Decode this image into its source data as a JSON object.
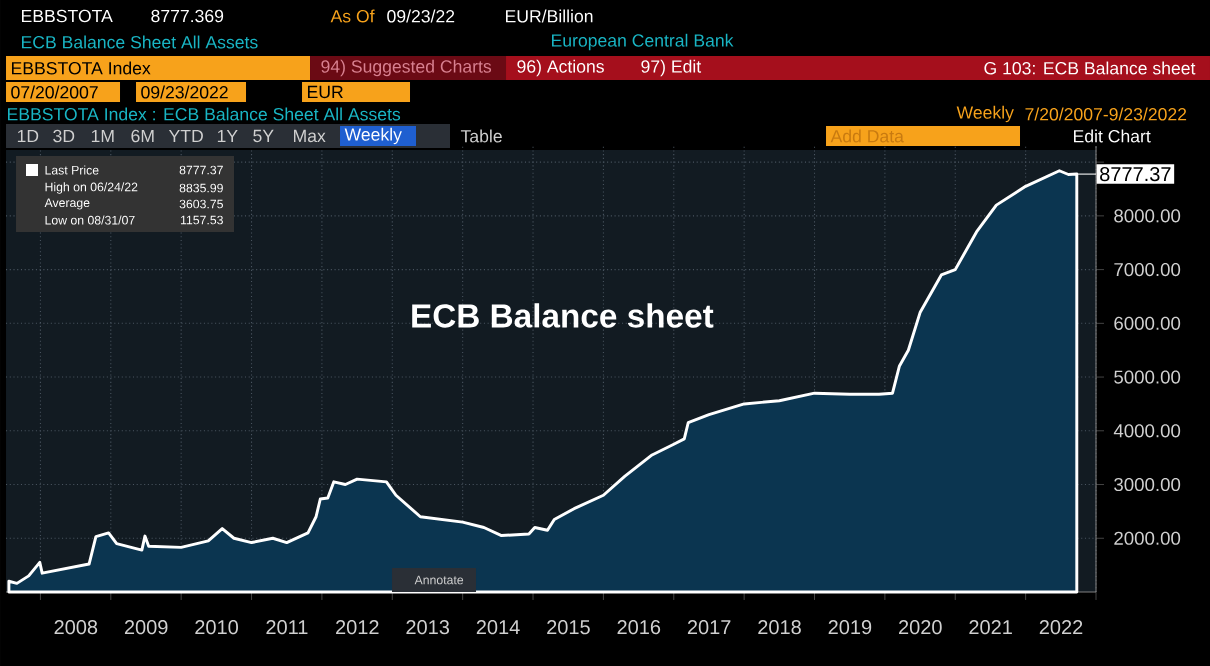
{
  "chart_data": {
    "type": "area",
    "title": "ECB Balance sheet",
    "x": [
      "2007-07-20",
      "2007-08-31",
      "2007-11-01",
      "2007-12-28",
      "2008-01-10",
      "2008-09-10",
      "2008-10-15",
      "2008-12-20",
      "2009-02-01",
      "2009-06-10",
      "2009-06-26",
      "2009-07-15",
      "2010-01-01",
      "2010-05-20",
      "2010-08-01",
      "2010-10-01",
      "2011-01-01",
      "2011-04-20",
      "2011-07-01",
      "2011-10-20",
      "2011-12-01",
      "2011-12-23",
      "2012-02-01",
      "2012-03-02",
      "2012-05-01",
      "2012-07-01",
      "2012-12-01",
      "2013-01-20",
      "2013-05-25",
      "2014-01-01",
      "2014-04-20",
      "2014-07-20",
      "2014-12-10",
      "2015-01-10",
      "2015-03-15",
      "2015-04-20",
      "2015-08-01",
      "2016-01-01",
      "2016-04-20",
      "2016-09-10",
      "2017-01-01",
      "2017-02-25",
      "2017-03-15",
      "2017-07-01",
      "2018-01-01",
      "2018-07-01",
      "2019-01-01",
      "2019-07-01",
      "2019-12-01",
      "2020-02-10",
      "2020-03-15",
      "2020-05-01",
      "2020-07-01",
      "2020-10-20",
      "2021-01-01",
      "2021-04-20",
      "2021-08-01",
      "2022-01-01",
      "2022-06-24",
      "2022-08-10",
      "2022-09-23"
    ],
    "series": [
      {
        "name": "Last Price",
        "color": "#ffffff",
        "values": [
          1200,
          1160,
          1300,
          1550,
          1350,
          1520,
          2030,
          2100,
          1900,
          1780,
          2040,
          1850,
          1830,
          1950,
          2180,
          2000,
          1920,
          2000,
          1920,
          2100,
          2400,
          2730,
          2750,
          3050,
          3000,
          3100,
          3050,
          2800,
          2400,
          2300,
          2200,
          2050,
          2080,
          2200,
          2150,
          2350,
          2550,
          2800,
          3150,
          3550,
          3750,
          3850,
          4150,
          4300,
          4500,
          4560,
          4700,
          4680,
          4680,
          4700,
          5200,
          5500,
          6200,
          6900,
          7000,
          7700,
          8200,
          8550,
          8840,
          8770,
          8780
        ]
      }
    ],
    "xlim": [
      "2007-07-05",
      "2023-01-01"
    ],
    "xticks": [
      {
        "value": "2008-01-01",
        "label": null
      },
      {
        "value": "2008-07-02",
        "label": "2008"
      },
      {
        "value": "2009-01-01",
        "label": null
      },
      {
        "value": "2009-07-02",
        "label": "2009"
      },
      {
        "value": "2010-01-01",
        "label": null
      },
      {
        "value": "2010-07-02",
        "label": "2010"
      },
      {
        "value": "2011-01-01",
        "label": null
      },
      {
        "value": "2011-07-02",
        "label": "2011"
      },
      {
        "value": "2012-01-01",
        "label": null
      },
      {
        "value": "2012-07-02",
        "label": "2012"
      },
      {
        "value": "2013-01-01",
        "label": null
      },
      {
        "value": "2013-07-02",
        "label": "2013"
      },
      {
        "value": "2014-01-01",
        "label": null
      },
      {
        "value": "2014-07-02",
        "label": "2014"
      },
      {
        "value": "2015-01-01",
        "label": null
      },
      {
        "value": "2015-07-02",
        "label": "2015"
      },
      {
        "value": "2016-01-01",
        "label": null
      },
      {
        "value": "2016-07-02",
        "label": "2016"
      },
      {
        "value": "2017-01-01",
        "label": null
      },
      {
        "value": "2017-07-02",
        "label": "2017"
      },
      {
        "value": "2018-01-01",
        "label": null
      },
      {
        "value": "2018-07-02",
        "label": "2018"
      },
      {
        "value": "2019-01-01",
        "label": null
      },
      {
        "value": "2019-07-02",
        "label": "2019"
      },
      {
        "value": "2020-01-01",
        "label": null
      },
      {
        "value": "2020-07-02",
        "label": "2020"
      },
      {
        "value": "2021-01-01",
        "label": null
      },
      {
        "value": "2021-07-02",
        "label": "2021"
      },
      {
        "value": "2022-01-01",
        "label": null
      },
      {
        "value": "2022-07-02",
        "label": "2022"
      },
      {
        "value": "2023-01-01",
        "label": null
      }
    ],
    "ylim": [
      1000,
      9300
    ],
    "yticks": [
      {
        "value": 2000,
        "label": "2000.00"
      },
      {
        "value": 3000,
        "label": "3000.00"
      },
      {
        "value": 4000,
        "label": "4000.00"
      },
      {
        "value": 5000,
        "label": "5000.00"
      },
      {
        "value": 6000,
        "label": "6000.00"
      },
      {
        "value": 7000,
        "label": "7000.00"
      },
      {
        "value": 8000,
        "label": "8000.00"
      },
      {
        "value": 9000,
        "label": null
      }
    ],
    "grid": true,
    "legend": "top left",
    "annotations": [
      "EBBSTOTA",
      "8777.369",
      "As Of",
      "09/23/22",
      "EUR/Billion",
      "ECB Balance Sheet All Assets",
      "European Central Bank",
      "EBBSTOTA Index",
      "94) Suggested Charts",
      "96) Actions",
      "97) Edit",
      "G 103: ECB Balance sheet",
      "07/20/2007",
      "09/23/2022",
      "EUR",
      "EBBSTOTA Index : ECB Balance Sheet All Assets",
      "Weekly",
      "7/20/2007-9/23/2022",
      "1D",
      "3D",
      "1M",
      "6M",
      "YTD",
      "1Y",
      "5Y",
      "Max",
      "Weekly",
      "Table",
      "Add Data",
      "Edit Chart",
      "8777.37",
      "High on 06/24/22",
      "8835.99",
      "Average",
      "3603.75",
      "Low on 08/31/07",
      "1157.53",
      "Annotate",
      {
        "text": "8777.37",
        "x": "2022-09-23",
        "y": 8777.37
      }
    ]
  }
}
